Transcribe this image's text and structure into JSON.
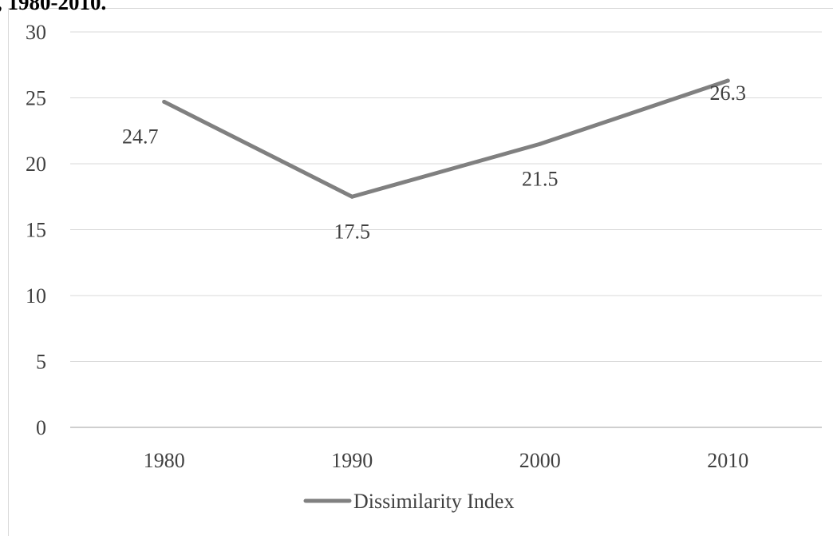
{
  "page": {
    "cut_title": ", 1980-2010."
  },
  "chart_data": {
    "type": "line",
    "title": "",
    "xlabel": "",
    "ylabel": "",
    "categories": [
      "1980",
      "1990",
      "2000",
      "2010"
    ],
    "series": [
      {
        "name": "Dissimilarity Index",
        "values": [
          24.7,
          17.5,
          21.5,
          26.3
        ],
        "color": "#808080"
      }
    ],
    "data_labels": [
      "24.7",
      "17.5",
      "21.5",
      "26.3"
    ],
    "ylim": [
      0,
      30
    ],
    "yticks": [
      0,
      5,
      10,
      15,
      20,
      25,
      30
    ],
    "grid": "horizontal",
    "legend_position": "bottom",
    "colors": {
      "grid": "#d9d9d9",
      "axis": "#bfbfbf",
      "text": "#404040",
      "frame": "#d9d9d9"
    }
  }
}
